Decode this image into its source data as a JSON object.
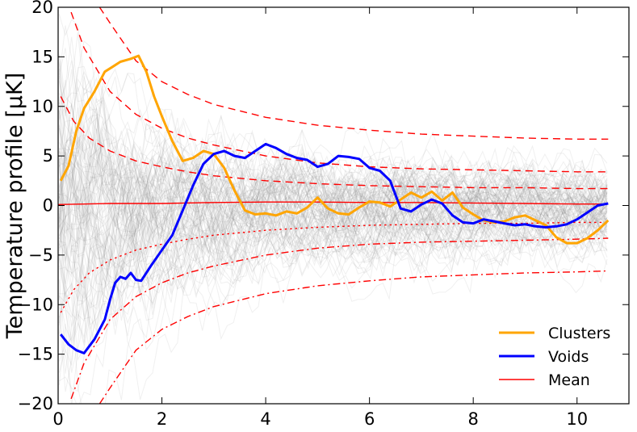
{
  "chart_data": {
    "type": "line",
    "title": "",
    "xlabel": "",
    "ylabel": "Temperature profile [μK]",
    "xlim": [
      0,
      11
    ],
    "ylim": [
      -20,
      20
    ],
    "xticks": [
      0,
      2,
      4,
      6,
      8,
      10
    ],
    "yticks": [
      -20,
      -15,
      -10,
      -5,
      0,
      5,
      10,
      15,
      20
    ],
    "xtick_labels": [
      "0",
      "2",
      "4",
      "6",
      "8",
      "10"
    ],
    "ytick_labels": [
      "−20",
      "−15",
      "−10",
      "−5",
      "0",
      "5",
      "10",
      "15",
      "20"
    ],
    "grid": false,
    "legend_position": "lower-right",
    "background_realizations": "gray",
    "series": [
      {
        "name": "Clusters",
        "color": "#ffa500",
        "style": "solid",
        "x": [
          0.05,
          0.2,
          0.35,
          0.5,
          0.7,
          0.9,
          1.05,
          1.2,
          1.4,
          1.55,
          1.7,
          1.85,
          2.0,
          2.2,
          2.4,
          2.6,
          2.8,
          3.0,
          3.2,
          3.4,
          3.6,
          3.8,
          4.0,
          4.2,
          4.4,
          4.6,
          4.8,
          5.0,
          5.2,
          5.4,
          5.6,
          5.8,
          6.0,
          6.2,
          6.4,
          6.6,
          6.8,
          7.0,
          7.2,
          7.4,
          7.6,
          7.8,
          8.0,
          8.2,
          8.4,
          8.6,
          8.8,
          9.0,
          9.2,
          9.4,
          9.6,
          9.8,
          10.0,
          10.2,
          10.4,
          10.6
        ],
        "y": [
          2.5,
          4.0,
          7.5,
          9.8,
          11.5,
          13.5,
          14.0,
          14.5,
          14.8,
          15.1,
          13.5,
          11.0,
          9.0,
          6.5,
          4.5,
          4.8,
          5.5,
          5.2,
          3.8,
          1.5,
          -0.5,
          -0.9,
          -0.8,
          -1.0,
          -0.6,
          -0.8,
          -0.2,
          0.8,
          -0.3,
          -0.8,
          -0.9,
          -0.2,
          0.4,
          0.3,
          -0.1,
          0.6,
          1.3,
          0.8,
          1.4,
          0.5,
          1.3,
          -0.2,
          -0.9,
          -1.5,
          -1.7,
          -1.6,
          -1.2,
          -1.0,
          -1.5,
          -2.0,
          -3.2,
          -3.8,
          -3.8,
          -3.3,
          -2.5,
          -1.5
        ]
      },
      {
        "name": "Voids",
        "color": "#0000ff",
        "style": "solid",
        "x": [
          0.05,
          0.2,
          0.35,
          0.5,
          0.7,
          0.9,
          1.0,
          1.1,
          1.2,
          1.3,
          1.4,
          1.5,
          1.6,
          1.8,
          2.0,
          2.2,
          2.4,
          2.6,
          2.8,
          3.0,
          3.2,
          3.4,
          3.6,
          3.8,
          4.0,
          4.2,
          4.4,
          4.6,
          4.8,
          5.0,
          5.2,
          5.4,
          5.6,
          5.8,
          6.0,
          6.2,
          6.4,
          6.6,
          6.8,
          7.0,
          7.2,
          7.4,
          7.6,
          7.8,
          8.0,
          8.2,
          8.4,
          8.6,
          8.8,
          9.0,
          9.2,
          9.4,
          9.6,
          9.8,
          10.0,
          10.2,
          10.4,
          10.6
        ],
        "y": [
          -13.0,
          -14.0,
          -14.6,
          -14.9,
          -13.5,
          -11.5,
          -9.5,
          -7.8,
          -7.2,
          -7.4,
          -6.8,
          -7.5,
          -7.6,
          -6.0,
          -4.5,
          -3.0,
          -0.5,
          2.0,
          4.2,
          5.2,
          5.5,
          5.0,
          4.8,
          5.5,
          6.2,
          5.8,
          5.2,
          4.8,
          4.6,
          3.9,
          4.2,
          5.0,
          4.9,
          4.7,
          3.8,
          3.5,
          2.5,
          -0.3,
          -0.6,
          0.1,
          0.6,
          0.2,
          -1.0,
          -1.7,
          -1.8,
          -1.4,
          -1.6,
          -1.8,
          -2.0,
          -1.9,
          -2.1,
          -2.2,
          -2.1,
          -1.9,
          -1.4,
          -0.7,
          0.0,
          0.2
        ]
      },
      {
        "name": "Mean",
        "color": "#ff0000",
        "style": "solid",
        "x": [
          0.0,
          1.0,
          2.0,
          3.0,
          4.0,
          5.0,
          6.0,
          7.0,
          8.0,
          9.0,
          10.0,
          10.6
        ],
        "y": [
          0.1,
          0.2,
          0.2,
          0.3,
          0.35,
          0.35,
          0.3,
          0.3,
          0.25,
          0.2,
          0.15,
          0.15
        ]
      },
      {
        "name": "",
        "color": "#ff0000",
        "style": "dashed",
        "x": [
          0.25,
          0.5,
          1,
          1.5,
          2,
          2.5,
          3,
          4,
          5,
          6,
          7,
          8,
          9,
          10,
          10.6
        ],
        "y": [
          19.5,
          15.9,
          11.5,
          9.2,
          7.8,
          6.8,
          6.1,
          5.0,
          4.3,
          3.9,
          3.7,
          3.6,
          3.5,
          3.4,
          3.4
        ]
      },
      {
        "name": "",
        "color": "#ff0000",
        "style": "dashed",
        "x": [
          0.05,
          0.3,
          0.6,
          1,
          1.5,
          2,
          2.5,
          3,
          4,
          5,
          6,
          7,
          8,
          9,
          10,
          10.6
        ],
        "y": [
          11.0,
          8.5,
          6.8,
          5.5,
          4.5,
          3.9,
          3.4,
          3.0,
          2.5,
          2.2,
          2.0,
          1.9,
          1.8,
          1.8,
          1.7,
          1.7
        ]
      },
      {
        "name": "",
        "color": "#ff0000",
        "style": "dashed",
        "x": [
          0.8,
          1,
          1.5,
          2,
          2.5,
          3,
          4,
          5,
          6,
          7,
          8,
          9,
          10,
          10.6
        ],
        "y": [
          20.0,
          18.4,
          14.6,
          12.5,
          11.2,
          10.2,
          8.9,
          8.1,
          7.6,
          7.2,
          7.0,
          6.8,
          6.7,
          6.7
        ]
      },
      {
        "name": "",
        "color": "#ff0000",
        "style": "dotted",
        "x": [
          0.05,
          0.3,
          0.6,
          1,
          1.5,
          2,
          2.5,
          3,
          4,
          5,
          6,
          7,
          8,
          9,
          10,
          10.6
        ],
        "y": [
          -10.8,
          -8.5,
          -6.8,
          -5.5,
          -4.5,
          -3.9,
          -3.4,
          -3.0,
          -2.5,
          -2.2,
          -2.0,
          -1.9,
          -1.8,
          -1.8,
          -1.7,
          -1.7
        ]
      },
      {
        "name": "",
        "color": "#ff0000",
        "style": "dashdot",
        "x": [
          0.25,
          0.5,
          1,
          1.5,
          2,
          2.5,
          3,
          4,
          5,
          6,
          7,
          8,
          9,
          10,
          10.6
        ],
        "y": [
          -19.5,
          -15.9,
          -11.5,
          -9.2,
          -7.8,
          -6.8,
          -6.1,
          -5.0,
          -4.3,
          -3.9,
          -3.7,
          -3.6,
          -3.5,
          -3.4,
          -3.3
        ]
      },
      {
        "name": "",
        "color": "#ff0000",
        "style": "dashdot",
        "x": [
          0.8,
          1,
          1.5,
          2,
          2.5,
          3,
          4,
          5,
          6,
          7,
          8,
          9,
          10,
          10.6
        ],
        "y": [
          -20.0,
          -18.4,
          -14.6,
          -12.5,
          -11.2,
          -10.2,
          -8.9,
          -8.1,
          -7.6,
          -7.2,
          -7.0,
          -6.8,
          -6.7,
          -6.6
        ]
      }
    ]
  }
}
